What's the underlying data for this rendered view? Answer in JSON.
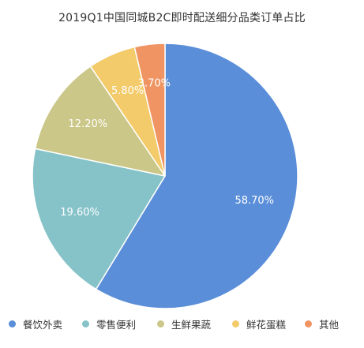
{
  "chart_data": {
    "type": "pie",
    "title": "2019Q1中国同城B2C即时配送细分品类订单占比",
    "categories": [
      "餐饮外卖",
      "零售便利",
      "生鲜果蔬",
      "鲜花蛋糕",
      "其他"
    ],
    "values": [
      58.7,
      19.6,
      12.2,
      5.8,
      3.7
    ],
    "labels": [
      "58.70%",
      "19.60%",
      "12.20%",
      "5.80%",
      "3.70%"
    ],
    "colors": [
      "#5b8ed8",
      "#86c3c9",
      "#cbc788",
      "#f3cb6a",
      "#ef9462"
    ],
    "start_angle_deg": 0,
    "direction": "clockwise",
    "legend_position": "bottom"
  }
}
